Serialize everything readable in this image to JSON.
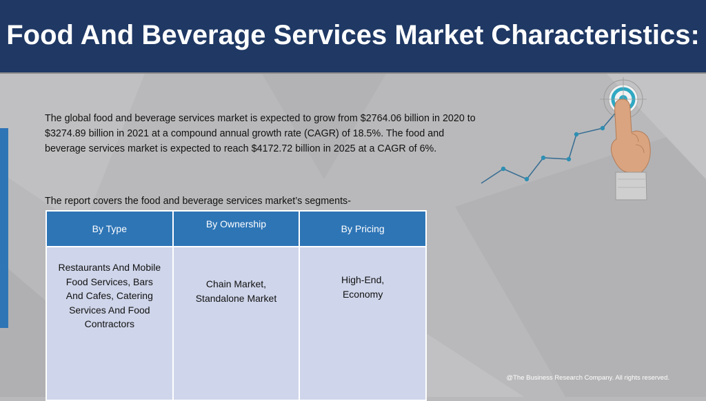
{
  "header": {
    "title": "Food And Beverage Services Market Characteristics:"
  },
  "intro": {
    "paragraph": "The global food and beverage services market is expected to grow from $2764.06 billion in 2020 to $3274.89 billion in 2021 at a compound annual growth rate (CAGR) of 18.5%. The food and beverage services market is expected to reach $4172.72 billion in 2025 at a CAGR of 6%."
  },
  "segments": {
    "lead": "The report covers the food and beverage services market’s segments-",
    "columns": [
      {
        "header": "By Type",
        "body": "Restaurants And Mobile Food Services, Bars And Cafes, Catering Services And Food Contractors"
      },
      {
        "header": "By Ownership",
        "body": "Chain Market, Standalone Market"
      },
      {
        "header": "By Pricing",
        "body": "High-End, Economy"
      }
    ]
  },
  "footer": {
    "copyright": "@The Business Research Company. All rights reserved."
  },
  "colors": {
    "header_bg": "#1f3864",
    "accent": "#2e75b6",
    "cell_bg": "#cfd5ea",
    "target_teal": "#2fa8c2"
  },
  "icons": {
    "graphic": "finger-pointing-target-icon"
  }
}
